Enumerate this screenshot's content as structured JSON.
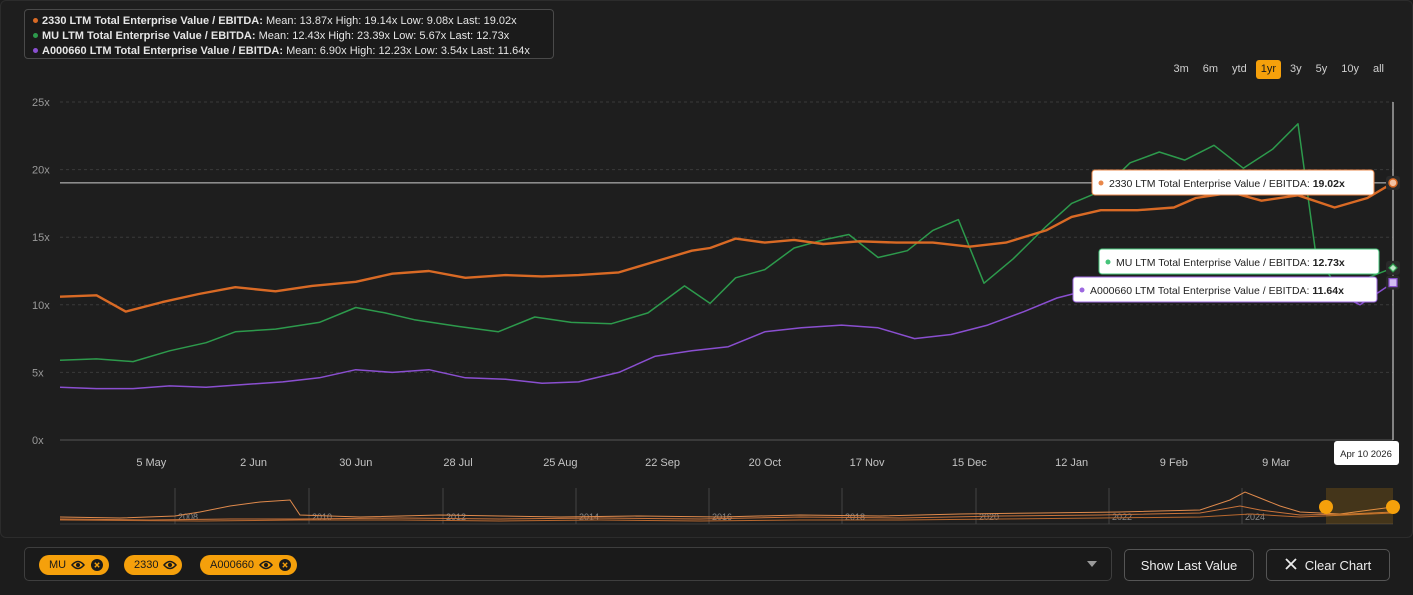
{
  "legend": [
    {
      "ticker": "2330",
      "name": "2330 LTM Total Enterprise Value / EBITDA:",
      "stats": "Mean: 13.87x High: 19.14x Low: 9.08x Last: 19.02x",
      "color": "#d96a25"
    },
    {
      "ticker": "MU",
      "name": "MU LTM Total Enterprise Value / EBITDA:",
      "stats": "Mean: 12.43x High: 23.39x Low: 5.67x Last: 12.73x",
      "color": "#2d9a4c"
    },
    {
      "ticker": "A000660",
      "name": "A000660 LTM Total Enterprise Value / EBITDA:",
      "stats": "Mean: 6.90x High: 12.23x Low: 3.54x Last: 11.64x",
      "color": "#8a4fd0"
    }
  ],
  "range_buttons": [
    "3m",
    "6m",
    "ytd",
    "1yr",
    "3y",
    "5y",
    "10y",
    "all"
  ],
  "active_range": "1yr",
  "tooltips": [
    {
      "label": "2330 LTM Total Enterprise Value / EBITDA:",
      "value": "19.02x",
      "color": "#e8874a"
    },
    {
      "label": "MU LTM Total Enterprise Value / EBITDA:",
      "value": "12.73x",
      "color": "#46c47a"
    },
    {
      "label": "A000660 LTM Total Enterprise Value / EBITDA:",
      "value": "11.64x",
      "color": "#9d68e0"
    }
  ],
  "crosshair_date": "Apr 10 2026",
  "navigator_years": [
    "2008",
    "2010",
    "2012",
    "2014",
    "2016",
    "2018",
    "2020",
    "2022",
    "2024"
  ],
  "chips": [
    {
      "label": "MU"
    },
    {
      "label": "2330"
    },
    {
      "label": "A000660"
    }
  ],
  "buttons": {
    "show_last_value": "Show Last Value",
    "clear_chart": "Clear Chart"
  },
  "chart_data": {
    "type": "line",
    "ylim": [
      0,
      25
    ],
    "yticks": [
      "0x",
      "5x",
      "10x",
      "15x",
      "20x",
      "25x"
    ],
    "x_date_range": [
      "2025-04-10",
      "2026-04-10"
    ],
    "x_ticks": [
      {
        "date": "2025-05-05",
        "label": "5 May"
      },
      {
        "date": "2025-06-02",
        "label": "2 Jun"
      },
      {
        "date": "2025-06-30",
        "label": "30 Jun"
      },
      {
        "date": "2025-07-28",
        "label": "28 Jul"
      },
      {
        "date": "2025-08-25",
        "label": "25 Aug"
      },
      {
        "date": "2025-09-22",
        "label": "22 Sep"
      },
      {
        "date": "2025-10-20",
        "label": "20 Oct"
      },
      {
        "date": "2025-11-17",
        "label": "17 Nov"
      },
      {
        "date": "2025-12-15",
        "label": "15 Dec"
      },
      {
        "date": "2026-01-12",
        "label": "12 Jan"
      },
      {
        "date": "2026-02-09",
        "label": "9 Feb"
      },
      {
        "date": "2026-03-09",
        "label": "9 Mar"
      }
    ],
    "reference_value": 19.02,
    "series": [
      {
        "name": "2330",
        "color": "#d96a25",
        "points": [
          [
            "2025-04-10",
            10.6
          ],
          [
            "2025-04-20",
            10.7
          ],
          [
            "2025-04-28",
            9.5
          ],
          [
            "2025-05-08",
            10.2
          ],
          [
            "2025-05-18",
            10.8
          ],
          [
            "2025-05-28",
            11.3
          ],
          [
            "2025-06-08",
            11.0
          ],
          [
            "2025-06-18",
            11.4
          ],
          [
            "2025-06-30",
            11.7
          ],
          [
            "2025-07-10",
            12.3
          ],
          [
            "2025-07-20",
            12.5
          ],
          [
            "2025-07-30",
            12.0
          ],
          [
            "2025-08-10",
            12.2
          ],
          [
            "2025-08-20",
            12.1
          ],
          [
            "2025-08-30",
            12.2
          ],
          [
            "2025-09-10",
            12.4
          ],
          [
            "2025-09-20",
            13.2
          ],
          [
            "2025-09-30",
            14.0
          ],
          [
            "2025-10-05",
            14.2
          ],
          [
            "2025-10-12",
            14.9
          ],
          [
            "2025-10-20",
            14.6
          ],
          [
            "2025-10-28",
            14.8
          ],
          [
            "2025-11-05",
            14.5
          ],
          [
            "2025-11-15",
            14.7
          ],
          [
            "2025-11-25",
            14.6
          ],
          [
            "2025-12-05",
            14.6
          ],
          [
            "2025-12-15",
            14.3
          ],
          [
            "2025-12-25",
            14.6
          ],
          [
            "2026-01-05",
            15.5
          ],
          [
            "2026-01-12",
            16.5
          ],
          [
            "2026-01-20",
            17.0
          ],
          [
            "2026-01-30",
            17.0
          ],
          [
            "2026-02-09",
            17.2
          ],
          [
            "2026-02-15",
            17.9
          ],
          [
            "2026-02-25",
            18.3
          ],
          [
            "2026-03-05",
            17.7
          ],
          [
            "2026-03-15",
            18.1
          ],
          [
            "2026-03-25",
            17.2
          ],
          [
            "2026-04-03",
            17.9
          ],
          [
            "2026-04-10",
            19.02
          ]
        ]
      },
      {
        "name": "MU",
        "color": "#2d9a4c",
        "points": [
          [
            "2025-04-10",
            5.9
          ],
          [
            "2025-04-20",
            6.0
          ],
          [
            "2025-04-30",
            5.8
          ],
          [
            "2025-05-10",
            6.6
          ],
          [
            "2025-05-20",
            7.2
          ],
          [
            "2025-05-28",
            8.0
          ],
          [
            "2025-06-08",
            8.2
          ],
          [
            "2025-06-20",
            8.7
          ],
          [
            "2025-06-30",
            9.8
          ],
          [
            "2025-07-08",
            9.4
          ],
          [
            "2025-07-16",
            8.9
          ],
          [
            "2025-07-28",
            8.4
          ],
          [
            "2025-08-08",
            8.0
          ],
          [
            "2025-08-18",
            9.1
          ],
          [
            "2025-08-28",
            8.7
          ],
          [
            "2025-09-08",
            8.6
          ],
          [
            "2025-09-18",
            9.4
          ],
          [
            "2025-09-28",
            11.4
          ],
          [
            "2025-10-05",
            10.1
          ],
          [
            "2025-10-12",
            12.0
          ],
          [
            "2025-10-20",
            12.6
          ],
          [
            "2025-10-28",
            14.2
          ],
          [
            "2025-11-05",
            14.8
          ],
          [
            "2025-11-12",
            15.2
          ],
          [
            "2025-11-20",
            13.5
          ],
          [
            "2025-11-28",
            14.0
          ],
          [
            "2025-12-05",
            15.5
          ],
          [
            "2025-12-12",
            16.3
          ],
          [
            "2025-12-19",
            11.6
          ],
          [
            "2025-12-27",
            13.4
          ],
          [
            "2026-01-05",
            15.8
          ],
          [
            "2026-01-12",
            17.5
          ],
          [
            "2026-01-20",
            18.4
          ],
          [
            "2026-01-28",
            20.5
          ],
          [
            "2026-02-05",
            21.3
          ],
          [
            "2026-02-12",
            20.7
          ],
          [
            "2026-02-20",
            21.8
          ],
          [
            "2026-02-28",
            20.1
          ],
          [
            "2026-03-08",
            21.5
          ],
          [
            "2026-03-15",
            23.39
          ],
          [
            "2026-03-20",
            13.5
          ],
          [
            "2026-03-28",
            10.6
          ],
          [
            "2026-04-03",
            12.0
          ],
          [
            "2026-04-10",
            12.73
          ]
        ]
      },
      {
        "name": "A000660",
        "color": "#8a4fd0",
        "points": [
          [
            "2025-04-10",
            3.9
          ],
          [
            "2025-04-20",
            3.8
          ],
          [
            "2025-04-30",
            3.8
          ],
          [
            "2025-05-10",
            4.0
          ],
          [
            "2025-05-20",
            3.9
          ],
          [
            "2025-05-30",
            4.1
          ],
          [
            "2025-06-10",
            4.3
          ],
          [
            "2025-06-20",
            4.6
          ],
          [
            "2025-06-30",
            5.2
          ],
          [
            "2025-07-10",
            5.0
          ],
          [
            "2025-07-20",
            5.2
          ],
          [
            "2025-07-30",
            4.6
          ],
          [
            "2025-08-10",
            4.5
          ],
          [
            "2025-08-20",
            4.2
          ],
          [
            "2025-08-30",
            4.3
          ],
          [
            "2025-09-10",
            5.0
          ],
          [
            "2025-09-20",
            6.2
          ],
          [
            "2025-09-30",
            6.6
          ],
          [
            "2025-10-10",
            6.9
          ],
          [
            "2025-10-20",
            8.0
          ],
          [
            "2025-10-30",
            8.3
          ],
          [
            "2025-11-10",
            8.5
          ],
          [
            "2025-11-20",
            8.3
          ],
          [
            "2025-11-30",
            7.5
          ],
          [
            "2025-12-10",
            7.8
          ],
          [
            "2025-12-20",
            8.5
          ],
          [
            "2025-12-30",
            9.5
          ],
          [
            "2026-01-08",
            10.5
          ],
          [
            "2026-01-18",
            11.2
          ],
          [
            "2026-01-28",
            11.0
          ],
          [
            "2026-02-09",
            10.5
          ],
          [
            "2026-02-20",
            11.2
          ],
          [
            "2026-03-01",
            10.9
          ],
          [
            "2026-03-12",
            11.6
          ],
          [
            "2026-03-22",
            11.3
          ],
          [
            "2026-04-01",
            10.0
          ],
          [
            "2026-04-10",
            11.64
          ]
        ]
      }
    ]
  }
}
